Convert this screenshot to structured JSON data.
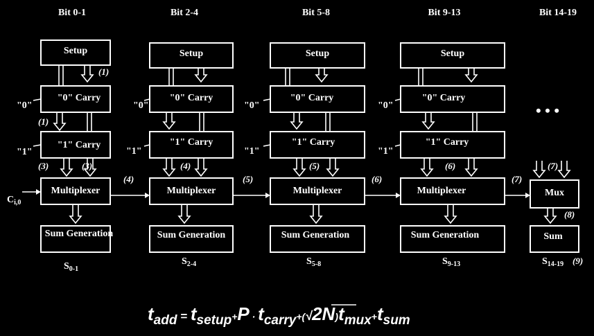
{
  "columns": [
    {
      "header": "Bit 0-1",
      "setup": "Setup",
      "carry0": "\"0\" Carry",
      "carry1": "\"1\" Carry",
      "mux": "Multiplexer",
      "sum": "Sum Generation",
      "out_main": "S",
      "out_sub": "0-1",
      "in0": "\"0\"",
      "in1": "\"1\""
    },
    {
      "header": "Bit 2-4",
      "setup": "Setup",
      "carry0": "\"0\" Carry",
      "carry1": "\"1\" Carry",
      "mux": "Multiplexer",
      "sum": "Sum Generation",
      "out_main": "S",
      "out_sub": "2-4",
      "in0": "\"0\"",
      "in1": "\"1\""
    },
    {
      "header": "Bit 5-8",
      "setup": "Setup",
      "carry0": "\"0\" Carry",
      "carry1": "\"1\" Carry",
      "mux": "Multiplexer",
      "sum": "Sum Generation",
      "out_main": "S",
      "out_sub": "5-8",
      "in0": "\"0\"",
      "in1": "\"1\""
    },
    {
      "header": "Bit 9-13",
      "setup": "Setup",
      "carry0": "\"0\" Carry",
      "carry1": "\"1\" Carry",
      "mux": "Multiplexer",
      "sum": "Sum Generation",
      "out_main": "S",
      "out_sub": "9-13",
      "in0": "\"0\"",
      "in1": "\"1\""
    },
    {
      "header": "Bit 14-19",
      "mux": "Mux",
      "sum": "Sum",
      "out_main": "S",
      "out_sub": "14-19"
    }
  ],
  "carry_in": {
    "main": "C",
    "sub": "i,0"
  },
  "ellipsis": "• • •",
  "step_labels": {
    "s1a": "(1)",
    "s1b": "(1)",
    "s3a": "(3)",
    "s3b": "(3)",
    "s4a": "(4)",
    "s4b": "(4)",
    "s5a": "(5)",
    "s5b": "(5)",
    "s6a": "(6)",
    "s6b": "(6)",
    "s7a": "(7)",
    "s7b": "(7)",
    "s8": "(8)",
    "s9": "(9)"
  },
  "formula": {
    "t1": "t",
    "s1": "add",
    "eq": " = ",
    "t2": "t",
    "s2": "setup",
    "plus1": "+",
    "p": "P",
    "dot": " · ",
    "t3": "t",
    "s3": "carry",
    "plus2": "+",
    "lp": "(",
    "root": "√",
    "twoN": "2N",
    "rp": ")",
    "t4": "t",
    "s4": "mux",
    "plus3": "+",
    "t5": "t",
    "s5": "sum"
  }
}
